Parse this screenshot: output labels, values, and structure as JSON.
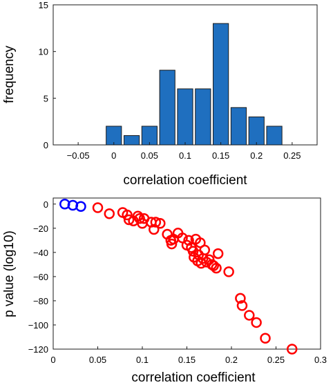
{
  "chart_data": [
    {
      "type": "bar",
      "xlabel": "correlation coefficient",
      "ylabel": "frequency",
      "xlim": [
        -0.085,
        0.285
      ],
      "ylim": [
        0,
        15
      ],
      "bin_width": 0.025,
      "bins": [
        {
          "center": 0.0,
          "count": 2
        },
        {
          "center": 0.025,
          "count": 1
        },
        {
          "center": 0.05,
          "count": 2
        },
        {
          "center": 0.075,
          "count": 8
        },
        {
          "center": 0.1,
          "count": 6
        },
        {
          "center": 0.125,
          "count": 6
        },
        {
          "center": 0.15,
          "count": 13
        },
        {
          "center": 0.175,
          "count": 4
        },
        {
          "center": 0.2,
          "count": 3
        },
        {
          "center": 0.225,
          "count": 2
        }
      ],
      "xticks": [
        -0.05,
        0,
        0.05,
        0.1,
        0.15,
        0.2,
        0.25
      ],
      "xtick_labels": [
        "−0.05",
        "0",
        "0.05",
        "0.1",
        "0.15",
        "0.2",
        "0.25"
      ],
      "yticks": [
        0,
        5,
        10,
        15
      ],
      "ytick_labels": [
        "0",
        "5",
        "10",
        "15"
      ],
      "colors": {
        "bar": "#1f6fbf",
        "edge": "#1a1a1a"
      }
    },
    {
      "type": "scatter",
      "xlabel": "correlation coefficient",
      "ylabel": "p value (log10)",
      "xlim": [
        0,
        0.3
      ],
      "ylim": [
        -120,
        5
      ],
      "xticks": [
        0,
        0.05,
        0.1,
        0.15,
        0.2,
        0.25,
        0.3
      ],
      "xtick_labels": [
        "0",
        "0.05",
        "0.1",
        "0.15",
        "0.2",
        "0.25",
        "0.3"
      ],
      "yticks": [
        0,
        -20,
        -40,
        -60,
        -80,
        -100,
        -120
      ],
      "ytick_labels": [
        "0",
        "−20",
        "−40",
        "−60",
        "−80",
        "−100",
        "−120"
      ],
      "series": [
        {
          "color": "#0000ff",
          "points": [
            [
              0.013,
              0
            ],
            [
              0.022,
              -1
            ],
            [
              0.031,
              -2
            ]
          ]
        },
        {
          "color": "#ff0000",
          "points": [
            [
              0.05,
              -3
            ],
            [
              0.063,
              -8
            ],
            [
              0.078,
              -7
            ],
            [
              0.083,
              -9
            ],
            [
              0.085,
              -13
            ],
            [
              0.09,
              -14
            ],
            [
              0.095,
              -10
            ],
            [
              0.097,
              -12
            ],
            [
              0.1,
              -16
            ],
            [
              0.102,
              -12
            ],
            [
              0.11,
              -15
            ],
            [
              0.113,
              -21
            ],
            [
              0.115,
              -15
            ],
            [
              0.12,
              -16
            ],
            [
              0.128,
              -25
            ],
            [
              0.132,
              -30
            ],
            [
              0.133,
              -33
            ],
            [
              0.135,
              -29
            ],
            [
              0.14,
              -24
            ],
            [
              0.145,
              -28
            ],
            [
              0.15,
              -34
            ],
            [
              0.152,
              -30
            ],
            [
              0.155,
              -36
            ],
            [
              0.157,
              -39
            ],
            [
              0.158,
              -44
            ],
            [
              0.16,
              -29
            ],
            [
              0.162,
              -47
            ],
            [
              0.163,
              -42
            ],
            [
              0.165,
              -32
            ],
            [
              0.166,
              -49
            ],
            [
              0.168,
              -45
            ],
            [
              0.17,
              -38
            ],
            [
              0.172,
              -48
            ],
            [
              0.175,
              -46
            ],
            [
              0.178,
              -50
            ],
            [
              0.18,
              -51
            ],
            [
              0.183,
              -53
            ],
            [
              0.185,
              -41
            ],
            [
              0.197,
              -56
            ],
            [
              0.21,
              -78
            ],
            [
              0.212,
              -84
            ],
            [
              0.22,
              -92
            ],
            [
              0.228,
              -98
            ],
            [
              0.238,
              -111
            ],
            [
              0.268,
              -120
            ]
          ]
        }
      ]
    }
  ]
}
